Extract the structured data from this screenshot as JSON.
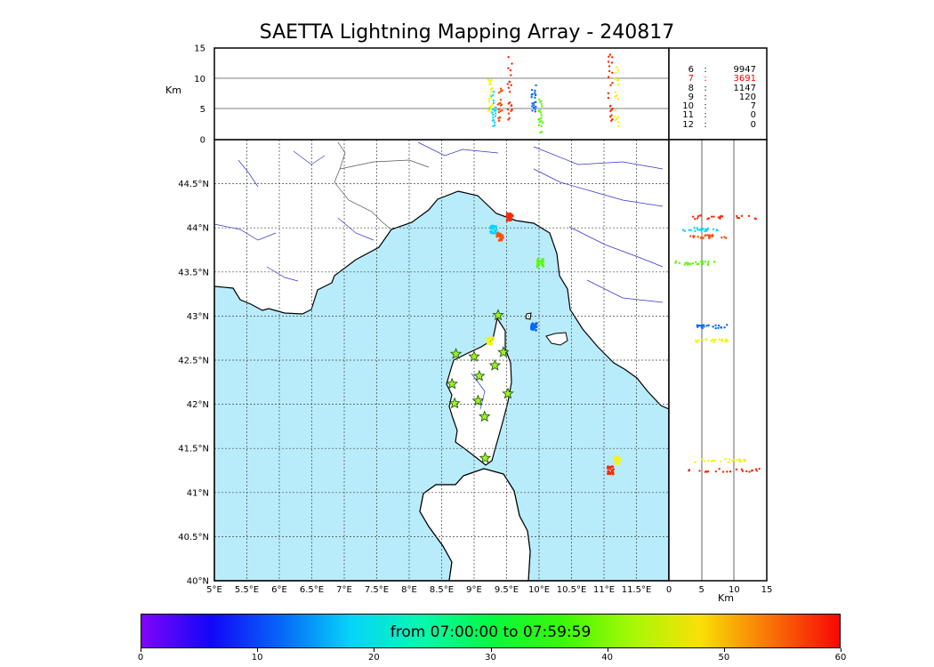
{
  "title": "SAETTA Lightning Mapping Array - 240817",
  "colors": {
    "sea": "#b8ecfb",
    "coast": "#000000",
    "rivers": "#3333cc",
    "borders": "#555555",
    "station_fill": "#9df02a",
    "station_stroke": "#1a4d00"
  },
  "height_panel": {
    "ylabel": "Km",
    "yticks": [
      "15",
      "10",
      "5",
      "0"
    ],
    "ylim": [
      0,
      15
    ]
  },
  "side_panel": {
    "xlabel": "Km",
    "xticks": [
      "0",
      "5",
      "10",
      "15"
    ],
    "xlim": [
      0,
      15
    ]
  },
  "map": {
    "lon_range": [
      5,
      12
    ],
    "lat_range": [
      40,
      45
    ],
    "xticks": [
      "5°E",
      "5.5°E",
      "6°E",
      "6.5°E",
      "7°E",
      "7.5°E",
      "8°E",
      "8.5°E",
      "9°E",
      "9.5°E",
      "10°E",
      "10.5°E",
      "11°E",
      "11.5°E"
    ],
    "yticks": [
      "44.5°N",
      "44°N",
      "43.5°N",
      "43°N",
      "42.5°N",
      "42°N",
      "41.5°N",
      "41°N",
      "40.5°N",
      "40°N"
    ]
  },
  "station_counts": [
    {
      "label": "6",
      "value": "9947",
      "color": "#000000"
    },
    {
      "label": "7",
      "value": "3691",
      "color": "#ff0000"
    },
    {
      "label": "8",
      "value": "1147",
      "color": "#000000"
    },
    {
      "label": "9",
      "value": "120",
      "color": "#000000"
    },
    {
      "label": "10",
      "value": "7",
      "color": "#000000"
    },
    {
      "label": "11",
      "value": "0",
      "color": "#000000"
    },
    {
      "label": "12",
      "value": "0",
      "color": "#000000"
    }
  ],
  "stations": [
    {
      "lon": 9.37,
      "lat": 43.01
    },
    {
      "lon": 8.72,
      "lat": 42.57
    },
    {
      "lon": 9.0,
      "lat": 42.54
    },
    {
      "lon": 9.45,
      "lat": 42.59
    },
    {
      "lon": 9.32,
      "lat": 42.44
    },
    {
      "lon": 9.08,
      "lat": 42.32
    },
    {
      "lon": 8.66,
      "lat": 42.23
    },
    {
      "lon": 9.52,
      "lat": 42.12
    },
    {
      "lon": 9.06,
      "lat": 42.04
    },
    {
      "lon": 8.7,
      "lat": 42.01
    },
    {
      "lon": 9.16,
      "lat": 41.86
    },
    {
      "lon": 9.17,
      "lat": 41.39
    }
  ],
  "clusters": [
    {
      "lon": 9.55,
      "lat": 44.12,
      "time": 58,
      "alt_lo": 3,
      "alt_hi": 14
    },
    {
      "lon": 9.3,
      "lat": 43.98,
      "time": 18,
      "alt_lo": 2,
      "alt_hi": 8
    },
    {
      "lon": 9.4,
      "lat": 43.9,
      "time": 56,
      "alt_lo": 3,
      "alt_hi": 9
    },
    {
      "lon": 10.02,
      "lat": 43.6,
      "time": 38,
      "alt_lo": 1,
      "alt_hi": 7
    },
    {
      "lon": 9.92,
      "lat": 42.88,
      "time": 12,
      "alt_lo": 4,
      "alt_hi": 9
    },
    {
      "lon": 9.25,
      "lat": 42.72,
      "time": 46,
      "alt_lo": 4,
      "alt_hi": 10
    },
    {
      "lon": 11.1,
      "lat": 41.25,
      "time": 58,
      "alt_lo": 3,
      "alt_hi": 14
    },
    {
      "lon": 11.2,
      "lat": 41.36,
      "time": 47,
      "alt_lo": 2,
      "alt_hi": 12
    }
  ],
  "colorbar": {
    "text": "from 07:00:00 to 07:59:59",
    "ticks": [
      "0",
      "10",
      "20",
      "30",
      "40",
      "50",
      "60"
    ],
    "range": [
      0,
      60
    ]
  }
}
